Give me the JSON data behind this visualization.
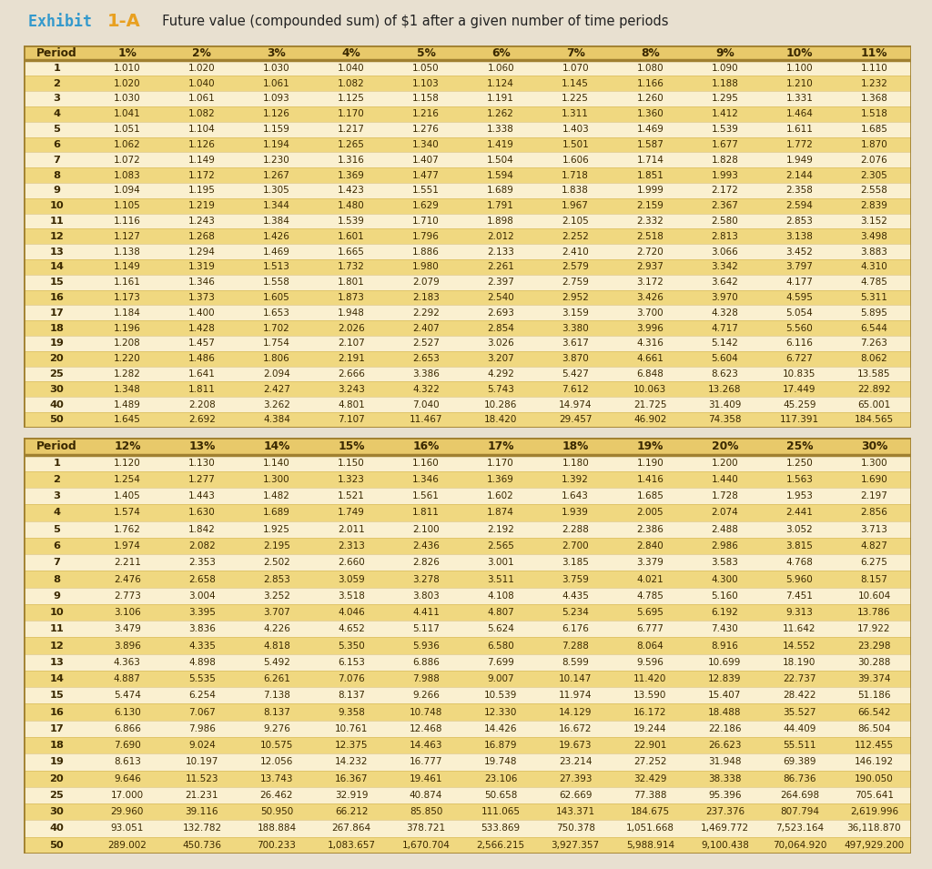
{
  "title_exhibit_part1": "Exhibit  ",
  "title_exhibit_part2": "1-A",
  "title_desc": "  Future value (compounded sum) of $1 after a given number of time periods",
  "table1_headers": [
    "Period",
    "1%",
    "2%",
    "3%",
    "4%",
    "5%",
    "6%",
    "7%",
    "8%",
    "9%",
    "10%",
    "11%"
  ],
  "table1_periods": [
    1,
    2,
    3,
    4,
    5,
    6,
    7,
    8,
    9,
    10,
    11,
    12,
    13,
    14,
    15,
    16,
    17,
    18,
    19,
    20,
    25,
    30,
    40,
    50
  ],
  "table1_data": [
    [
      1.01,
      1.02,
      1.03,
      1.04,
      1.05,
      1.06,
      1.07,
      1.08,
      1.09,
      1.1,
      1.11
    ],
    [
      1.02,
      1.04,
      1.061,
      1.082,
      1.103,
      1.124,
      1.145,
      1.166,
      1.188,
      1.21,
      1.232
    ],
    [
      1.03,
      1.061,
      1.093,
      1.125,
      1.158,
      1.191,
      1.225,
      1.26,
      1.295,
      1.331,
      1.368
    ],
    [
      1.041,
      1.082,
      1.126,
      1.17,
      1.216,
      1.262,
      1.311,
      1.36,
      1.412,
      1.464,
      1.518
    ],
    [
      1.051,
      1.104,
      1.159,
      1.217,
      1.276,
      1.338,
      1.403,
      1.469,
      1.539,
      1.611,
      1.685
    ],
    [
      1.062,
      1.126,
      1.194,
      1.265,
      1.34,
      1.419,
      1.501,
      1.587,
      1.677,
      1.772,
      1.87
    ],
    [
      1.072,
      1.149,
      1.23,
      1.316,
      1.407,
      1.504,
      1.606,
      1.714,
      1.828,
      1.949,
      2.076
    ],
    [
      1.083,
      1.172,
      1.267,
      1.369,
      1.477,
      1.594,
      1.718,
      1.851,
      1.993,
      2.144,
      2.305
    ],
    [
      1.094,
      1.195,
      1.305,
      1.423,
      1.551,
      1.689,
      1.838,
      1.999,
      2.172,
      2.358,
      2.558
    ],
    [
      1.105,
      1.219,
      1.344,
      1.48,
      1.629,
      1.791,
      1.967,
      2.159,
      2.367,
      2.594,
      2.839
    ],
    [
      1.116,
      1.243,
      1.384,
      1.539,
      1.71,
      1.898,
      2.105,
      2.332,
      2.58,
      2.853,
      3.152
    ],
    [
      1.127,
      1.268,
      1.426,
      1.601,
      1.796,
      2.012,
      2.252,
      2.518,
      2.813,
      3.138,
      3.498
    ],
    [
      1.138,
      1.294,
      1.469,
      1.665,
      1.886,
      2.133,
      2.41,
      2.72,
      3.066,
      3.452,
      3.883
    ],
    [
      1.149,
      1.319,
      1.513,
      1.732,
      1.98,
      2.261,
      2.579,
      2.937,
      3.342,
      3.797,
      4.31
    ],
    [
      1.161,
      1.346,
      1.558,
      1.801,
      2.079,
      2.397,
      2.759,
      3.172,
      3.642,
      4.177,
      4.785
    ],
    [
      1.173,
      1.373,
      1.605,
      1.873,
      2.183,
      2.54,
      2.952,
      3.426,
      3.97,
      4.595,
      5.311
    ],
    [
      1.184,
      1.4,
      1.653,
      1.948,
      2.292,
      2.693,
      3.159,
      3.7,
      4.328,
      5.054,
      5.895
    ],
    [
      1.196,
      1.428,
      1.702,
      2.026,
      2.407,
      2.854,
      3.38,
      3.996,
      4.717,
      5.56,
      6.544
    ],
    [
      1.208,
      1.457,
      1.754,
      2.107,
      2.527,
      3.026,
      3.617,
      4.316,
      5.142,
      6.116,
      7.263
    ],
    [
      1.22,
      1.486,
      1.806,
      2.191,
      2.653,
      3.207,
      3.87,
      4.661,
      5.604,
      6.727,
      8.062
    ],
    [
      1.282,
      1.641,
      2.094,
      2.666,
      3.386,
      4.292,
      5.427,
      6.848,
      8.623,
      10.835,
      13.585
    ],
    [
      1.348,
      1.811,
      2.427,
      3.243,
      4.322,
      5.743,
      7.612,
      10.063,
      13.268,
      17.449,
      22.892
    ],
    [
      1.489,
      2.208,
      3.262,
      4.801,
      7.04,
      10.286,
      14.974,
      21.725,
      31.409,
      45.259,
      65.001
    ],
    [
      1.645,
      2.692,
      4.384,
      7.107,
      11.467,
      18.42,
      29.457,
      46.902,
      74.358,
      117.391,
      184.565
    ]
  ],
  "table2_headers": [
    "Period",
    "12%",
    "13%",
    "14%",
    "15%",
    "16%",
    "17%",
    "18%",
    "19%",
    "20%",
    "25%",
    "30%"
  ],
  "table2_periods": [
    1,
    2,
    3,
    4,
    5,
    6,
    7,
    8,
    9,
    10,
    11,
    12,
    13,
    14,
    15,
    16,
    17,
    18,
    19,
    20,
    25,
    30,
    40,
    50
  ],
  "table2_data": [
    [
      1.12,
      1.13,
      1.14,
      1.15,
      1.16,
      1.17,
      1.18,
      1.19,
      1.2,
      1.25,
      1.3
    ],
    [
      1.254,
      1.277,
      1.3,
      1.323,
      1.346,
      1.369,
      1.392,
      1.416,
      1.44,
      1.563,
      1.69
    ],
    [
      1.405,
      1.443,
      1.482,
      1.521,
      1.561,
      1.602,
      1.643,
      1.685,
      1.728,
      1.953,
      2.197
    ],
    [
      1.574,
      1.63,
      1.689,
      1.749,
      1.811,
      1.874,
      1.939,
      2.005,
      2.074,
      2.441,
      2.856
    ],
    [
      1.762,
      1.842,
      1.925,
      2.011,
      2.1,
      2.192,
      2.288,
      2.386,
      2.488,
      3.052,
      3.713
    ],
    [
      1.974,
      2.082,
      2.195,
      2.313,
      2.436,
      2.565,
      2.7,
      2.84,
      2.986,
      3.815,
      4.827
    ],
    [
      2.211,
      2.353,
      2.502,
      2.66,
      2.826,
      3.001,
      3.185,
      3.379,
      3.583,
      4.768,
      6.275
    ],
    [
      2.476,
      2.658,
      2.853,
      3.059,
      3.278,
      3.511,
      3.759,
      4.021,
      4.3,
      5.96,
      8.157
    ],
    [
      2.773,
      3.004,
      3.252,
      3.518,
      3.803,
      4.108,
      4.435,
      4.785,
      5.16,
      7.451,
      10.604
    ],
    [
      3.106,
      3.395,
      3.707,
      4.046,
      4.411,
      4.807,
      5.234,
      5.695,
      6.192,
      9.313,
      13.786
    ],
    [
      3.479,
      3.836,
      4.226,
      4.652,
      5.117,
      5.624,
      6.176,
      6.777,
      7.43,
      11.642,
      17.922
    ],
    [
      3.896,
      4.335,
      4.818,
      5.35,
      5.936,
      6.58,
      7.288,
      8.064,
      8.916,
      14.552,
      23.298
    ],
    [
      4.363,
      4.898,
      5.492,
      6.153,
      6.886,
      7.699,
      8.599,
      9.596,
      10.699,
      18.19,
      30.288
    ],
    [
      4.887,
      5.535,
      6.261,
      7.076,
      7.988,
      9.007,
      10.147,
      11.42,
      12.839,
      22.737,
      39.374
    ],
    [
      5.474,
      6.254,
      7.138,
      8.137,
      9.266,
      10.539,
      11.974,
      13.59,
      15.407,
      28.422,
      51.186
    ],
    [
      6.13,
      7.067,
      8.137,
      9.358,
      10.748,
      12.33,
      14.129,
      16.172,
      18.488,
      35.527,
      66.542
    ],
    [
      6.866,
      7.986,
      9.276,
      10.761,
      12.468,
      14.426,
      16.672,
      19.244,
      22.186,
      44.409,
      86.504
    ],
    [
      7.69,
      9.024,
      10.575,
      12.375,
      14.463,
      16.879,
      19.673,
      22.901,
      26.623,
      55.511,
      112.455
    ],
    [
      8.613,
      10.197,
      12.056,
      14.232,
      16.777,
      19.748,
      23.214,
      27.252,
      31.948,
      69.389,
      146.192
    ],
    [
      9.646,
      11.523,
      13.743,
      16.367,
      19.461,
      23.106,
      27.393,
      32.429,
      38.338,
      86.736,
      190.05
    ],
    [
      17.0,
      21.231,
      26.462,
      32.919,
      40.874,
      50.658,
      62.669,
      77.388,
      95.396,
      264.698,
      705.641
    ],
    [
      29.96,
      39.116,
      50.95,
      66.212,
      85.85,
      111.065,
      143.371,
      184.675,
      237.376,
      807.794,
      2619.996
    ],
    [
      93.051,
      132.782,
      188.884,
      267.864,
      378.721,
      533.869,
      750.378,
      1051.668,
      1469.772,
      7523.164,
      36118.87
    ],
    [
      289.002,
      450.736,
      700.233,
      1083.657,
      1670.704,
      2566.215,
      3927.357,
      5988.914,
      9100.438,
      70064.92,
      497929.2
    ]
  ],
  "bg_color": "#FAF0D0",
  "header_bg": "#E8C96A",
  "border_color": "#A08030",
  "text_color": "#3A2800",
  "title_exhibit_color": "#3399CC",
  "title_1a_color": "#E8A020",
  "highlight_color": "#F0D880",
  "normal_color": "#FAF0D0",
  "page_bg": "#E8E0D0"
}
